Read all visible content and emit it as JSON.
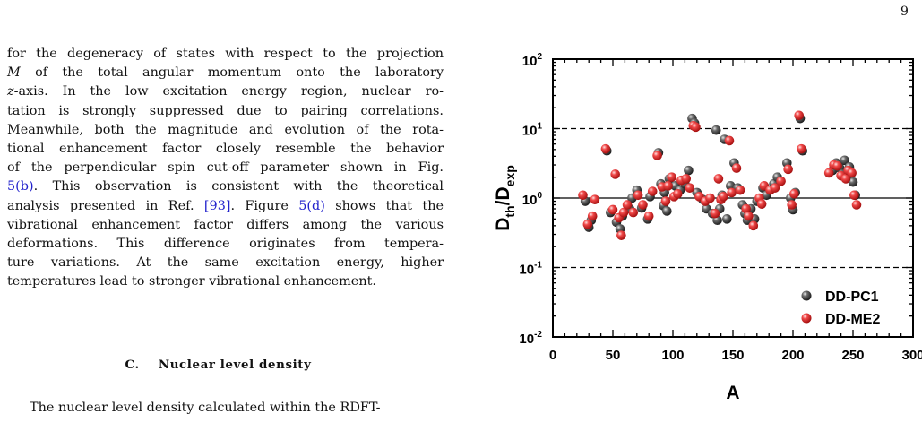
{
  "page": {
    "number": "9"
  },
  "paragraph": [
    [
      "for the degeneracy of states with respect to the projection",
      false
    ],
    [
      "M of the total angular momentum onto the laboratory",
      false
    ],
    [
      "z-axis. In the low excitation energy region, nuclear ro-",
      false
    ],
    [
      "tation is strongly suppressed due to pairing correlations.",
      false
    ],
    [
      "Meanwhile, both the magnitude and evolution of the rota-",
      false
    ],
    [
      "tional enhancement factor closely resemble the behavior",
      false
    ],
    [
      "of the perpendicular spin cut-off parameter shown in Fig.",
      false
    ],
    [
      "5(b). This observation is consistent with the theoretical",
      false
    ],
    [
      "analysis presented in Ref. [93]. Figure 5(d) shows that the",
      false
    ],
    [
      "vibrational enhancement factor differs among the various",
      false
    ],
    [
      "deformations. This difference originates from tempera-",
      false
    ],
    [
      "ture variations. At the same excitation energy, higher",
      false
    ],
    [
      "temperatures lead to stronger vibrational enhancement.",
      true
    ]
  ],
  "links": [
    "5(b)",
    "[93]",
    "5(d)"
  ],
  "section_heading": "C.    Nuclear level density",
  "next_paragraph": "The nuclear level density calculated within the RDFT-",
  "chart_data": {
    "type": "scatter",
    "xlabel": "A",
    "ylabel": "D_th/D_exp",
    "ylabel_parts": {
      "base": "D",
      "sub_num": "th",
      "sep": "/D",
      "sub_den": "exp"
    },
    "xlim": [
      0,
      300
    ],
    "ylim_log10": [
      -2,
      2
    ],
    "yscale": "log",
    "xticks": [
      "0",
      "50",
      "100",
      "150",
      "200",
      "250",
      "300"
    ],
    "yticks": [
      {
        "base": "10",
        "exp": "-2"
      },
      {
        "base": "10",
        "exp": "-1"
      },
      {
        "base": "10",
        "exp": "0"
      },
      {
        "base": "10",
        "exp": "1"
      },
      {
        "base": "10",
        "exp": "2"
      }
    ],
    "reference_lines": [
      {
        "y": 1,
        "style": "solid"
      },
      {
        "y": 10,
        "style": "dashed"
      },
      {
        "y": 0.1,
        "style": "dashed"
      }
    ],
    "legend_position": "bottom-right",
    "series": [
      {
        "name": "DD-PC1",
        "color": "#444444",
        "points": [
          [
            27,
            0.9
          ],
          [
            30,
            0.38
          ],
          [
            32,
            0.48
          ],
          [
            45,
            4.8
          ],
          [
            48,
            0.62
          ],
          [
            53,
            0.45
          ],
          [
            56,
            0.36
          ],
          [
            58,
            0.55
          ],
          [
            64,
            0.7
          ],
          [
            66,
            1.0
          ],
          [
            70,
            1.3
          ],
          [
            74,
            0.72
          ],
          [
            79,
            0.5
          ],
          [
            81,
            1.05
          ],
          [
            88,
            4.5
          ],
          [
            90,
            1.6
          ],
          [
            92,
            0.78
          ],
          [
            93,
            1.2
          ],
          [
            95,
            0.65
          ],
          [
            97,
            1.9
          ],
          [
            102,
            1.5
          ],
          [
            106,
            1.3
          ],
          [
            110,
            1.6
          ],
          [
            113,
            2.5
          ],
          [
            116,
            14
          ],
          [
            118,
            12
          ],
          [
            120,
            1.2
          ],
          [
            125,
            0.95
          ],
          [
            128,
            0.7
          ],
          [
            133,
            0.6
          ],
          [
            136,
            9.5
          ],
          [
            137,
            0.48
          ],
          [
            139,
            0.7
          ],
          [
            141,
            1.1
          ],
          [
            143,
            7
          ],
          [
            145,
            0.5
          ],
          [
            148,
            1.5
          ],
          [
            151,
            3.2
          ],
          [
            154,
            1.4
          ],
          [
            158,
            0.8
          ],
          [
            160,
            0.6
          ],
          [
            162,
            0.48
          ],
          [
            165,
            0.7
          ],
          [
            168,
            0.5
          ],
          [
            170,
            0.9
          ],
          [
            175,
            1.4
          ],
          [
            178,
            1.1
          ],
          [
            184,
            1.6
          ],
          [
            187,
            2.0
          ],
          [
            195,
            3.2
          ],
          [
            198,
            1.0
          ],
          [
            200,
            0.68
          ],
          [
            202,
            1.2
          ],
          [
            206,
            14
          ],
          [
            208,
            4.8
          ],
          [
            233,
            2.5
          ],
          [
            236,
            3.2
          ],
          [
            239,
            2.7
          ],
          [
            241,
            2.2
          ],
          [
            243,
            3.5
          ],
          [
            245,
            2.0
          ],
          [
            247,
            2.8
          ],
          [
            250,
            1.7
          ],
          [
            252,
            1.1
          ]
        ]
      },
      {
        "name": "DD-ME2",
        "color": "#ee3333",
        "points": [
          [
            25,
            1.1
          ],
          [
            29,
            0.42
          ],
          [
            33,
            0.55
          ],
          [
            35,
            0.95
          ],
          [
            44,
            5.1
          ],
          [
            50,
            0.68
          ],
          [
            52,
            2.2
          ],
          [
            55,
            0.52
          ],
          [
            57,
            0.29
          ],
          [
            59,
            0.62
          ],
          [
            62,
            0.8
          ],
          [
            67,
            0.62
          ],
          [
            71,
            1.1
          ],
          [
            75,
            0.8
          ],
          [
            80,
            0.55
          ],
          [
            83,
            1.25
          ],
          [
            87,
            4.1
          ],
          [
            91,
            1.45
          ],
          [
            94,
            0.9
          ],
          [
            96,
            1.5
          ],
          [
            99,
            2.0
          ],
          [
            101,
            1.05
          ],
          [
            104,
            1.15
          ],
          [
            107,
            1.8
          ],
          [
            111,
            1.9
          ],
          [
            114,
            1.4
          ],
          [
            117,
            11
          ],
          [
            119,
            10.5
          ],
          [
            122,
            1.05
          ],
          [
            127,
            0.9
          ],
          [
            131,
            1.0
          ],
          [
            135,
            0.6
          ],
          [
            138,
            1.9
          ],
          [
            140,
            0.95
          ],
          [
            142,
            1.05
          ],
          [
            147,
            6.7
          ],
          [
            149,
            1.2
          ],
          [
            153,
            2.7
          ],
          [
            156,
            1.3
          ],
          [
            161,
            0.7
          ],
          [
            163,
            0.55
          ],
          [
            167,
            0.4
          ],
          [
            172,
            1.0
          ],
          [
            174,
            0.82
          ],
          [
            176,
            1.5
          ],
          [
            181,
            1.3
          ],
          [
            185,
            1.4
          ],
          [
            190,
            1.75
          ],
          [
            196,
            2.6
          ],
          [
            199,
            0.8
          ],
          [
            201,
            1.15
          ],
          [
            205,
            15.5
          ],
          [
            207,
            5.1
          ],
          [
            230,
            2.3
          ],
          [
            234,
            3.0
          ],
          [
            237,
            2.9
          ],
          [
            240,
            2.1
          ],
          [
            244,
            1.9
          ],
          [
            246,
            2.5
          ],
          [
            249,
            2.3
          ],
          [
            251,
            1.1
          ],
          [
            253,
            0.8
          ]
        ]
      }
    ]
  }
}
